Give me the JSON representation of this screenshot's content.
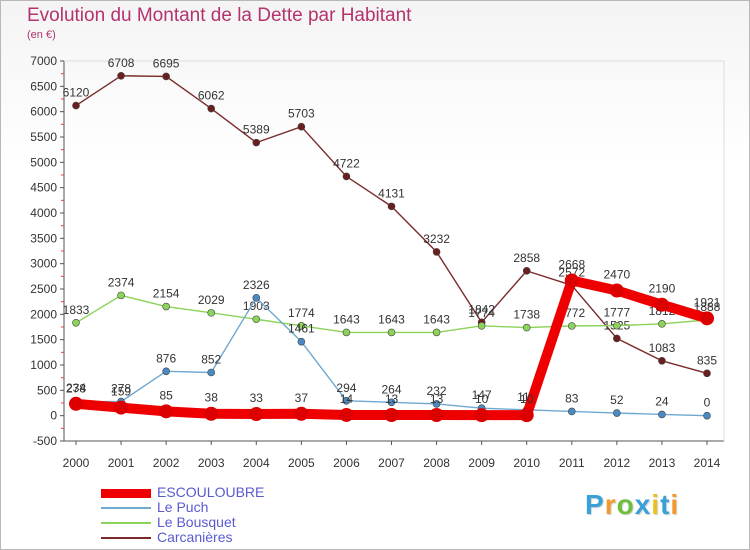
{
  "title": "Evolution du Montant de la Dette par Habitant",
  "subtitle": "(en €)",
  "logo": {
    "text": "Proxiti",
    "letter_colors": [
      "#3aa0d8",
      "#f29a2e",
      "#6cbf3c",
      "#3aa0d8",
      "#e8c020",
      "#3aa0d8",
      "#f29a2e"
    ]
  },
  "chart_data": {
    "type": "line",
    "x": [
      "2000",
      "2001",
      "2002",
      "2003",
      "2004",
      "2005",
      "2006",
      "2007",
      "2008",
      "2009",
      "2010",
      "2011",
      "2012",
      "2013",
      "2014"
    ],
    "ylim": [
      -500,
      7000
    ],
    "yticks": [
      -500,
      0,
      500,
      1000,
      1500,
      2000,
      2500,
      3000,
      3500,
      4000,
      4500,
      5000,
      5500,
      6000,
      6500,
      7000
    ],
    "grid": false,
    "legend_position": "bottom-left",
    "series": [
      {
        "name": "Carcanières",
        "color": "#7a2a2a",
        "marker_fill": "#6b1e1e",
        "values": [
          6120,
          6708,
          6695,
          6062,
          5389,
          5703,
          4722,
          4131,
          3232,
          1842,
          2858,
          2572,
          1525,
          1083,
          835
        ],
        "labels": [
          "6120",
          "6708",
          "6695",
          "6062",
          "5389",
          "5703",
          "4722",
          "4131",
          "3232",
          "1842",
          "2858",
          "2572",
          "1525",
          "1083",
          "835"
        ]
      },
      {
        "name": "Le Bousquet",
        "color": "#8cd35a",
        "marker_fill": "#8cd35a",
        "values": [
          1833,
          2374,
          2154,
          2029,
          1903,
          1774,
          1643,
          1643,
          1643,
          1774,
          1738,
          1772,
          1777,
          1812,
          1888
        ],
        "labels": [
          "1833",
          "2374",
          "2154",
          "2029",
          "1903",
          "1774",
          "1643",
          "1643",
          "1643",
          "1774",
          "1738",
          "1772",
          "1777",
          "1812",
          "1888"
        ]
      },
      {
        "name": "Le Puch",
        "color": "#6fa8d0",
        "marker_fill": "#4a8ac4",
        "values": [
          278,
          278,
          876,
          852,
          2326,
          1461,
          294,
          264,
          232,
          147,
          115,
          83,
          52,
          24,
          0
        ],
        "labels": [
          "278",
          "278",
          "876",
          "852",
          "2326",
          "1461",
          "294",
          "264",
          "232",
          "147",
          "115",
          "83",
          "52",
          "24",
          "0"
        ]
      },
      {
        "name": "ESCOULOUBRE",
        "color": "#ee0000",
        "marker_fill": "#dd0000",
        "values": [
          234,
          159,
          85,
          38,
          33,
          37,
          14,
          13,
          13,
          10,
          10,
          2668,
          2470,
          2190,
          1921
        ],
        "labels": [
          "234",
          "159",
          "85",
          "38",
          "33",
          "37",
          "14",
          "13",
          "13",
          "10",
          "10",
          "2668",
          "2470",
          "2190",
          "1921"
        ]
      }
    ]
  }
}
